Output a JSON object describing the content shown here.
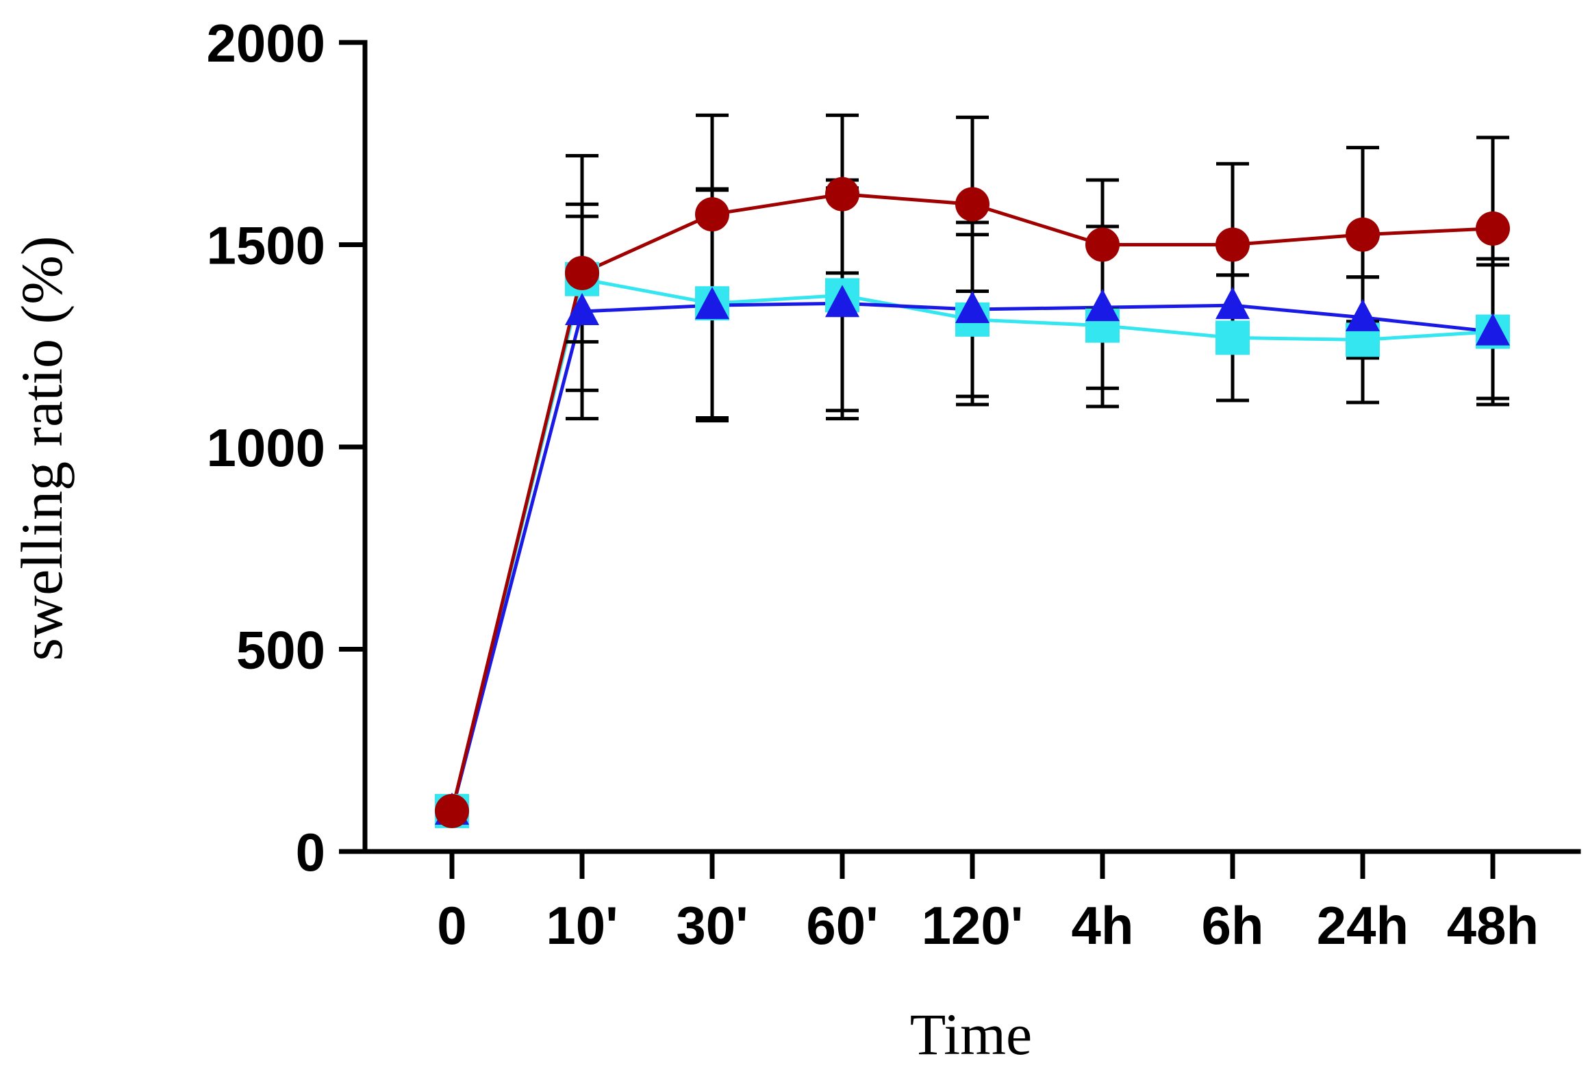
{
  "chart_data": {
    "type": "line",
    "title": "",
    "xlabel": "Time",
    "ylabel": "swelling ratio (%)",
    "categories": [
      "0",
      "10'",
      "30'",
      "60'",
      "120'",
      "4h",
      "6h",
      "24h",
      "48h"
    ],
    "ylim": [
      0,
      2000
    ],
    "yticks": [
      0,
      500,
      1000,
      1500,
      2000
    ],
    "grid": false,
    "series": [
      {
        "name": "cyan-squares",
        "color": "#33e6f0",
        "marker": "square",
        "values": [
          100,
          1415,
          1355,
          1375,
          1315,
          1300,
          1270,
          1265,
          1285
        ],
        "errors": [
          0,
          155,
          283,
          285,
          210,
          200,
          155,
          155,
          165
        ]
      },
      {
        "name": "blue-triangles",
        "color": "#1a1ae6",
        "marker": "triangle",
        "values": [
          100,
          1335,
          1350,
          1355,
          1340,
          1345,
          1350,
          1320,
          1285
        ],
        "errors": [
          0,
          265,
          285,
          285,
          215,
          200,
          75,
          100,
          180
        ]
      },
      {
        "name": "red-circles",
        "color": "#a00000",
        "marker": "circle",
        "values": [
          100,
          1430,
          1575,
          1625,
          1600,
          1500,
          1500,
          1525,
          1540
        ],
        "errors": [
          0,
          290,
          245,
          195,
          215,
          160,
          200,
          215,
          225
        ]
      }
    ]
  }
}
